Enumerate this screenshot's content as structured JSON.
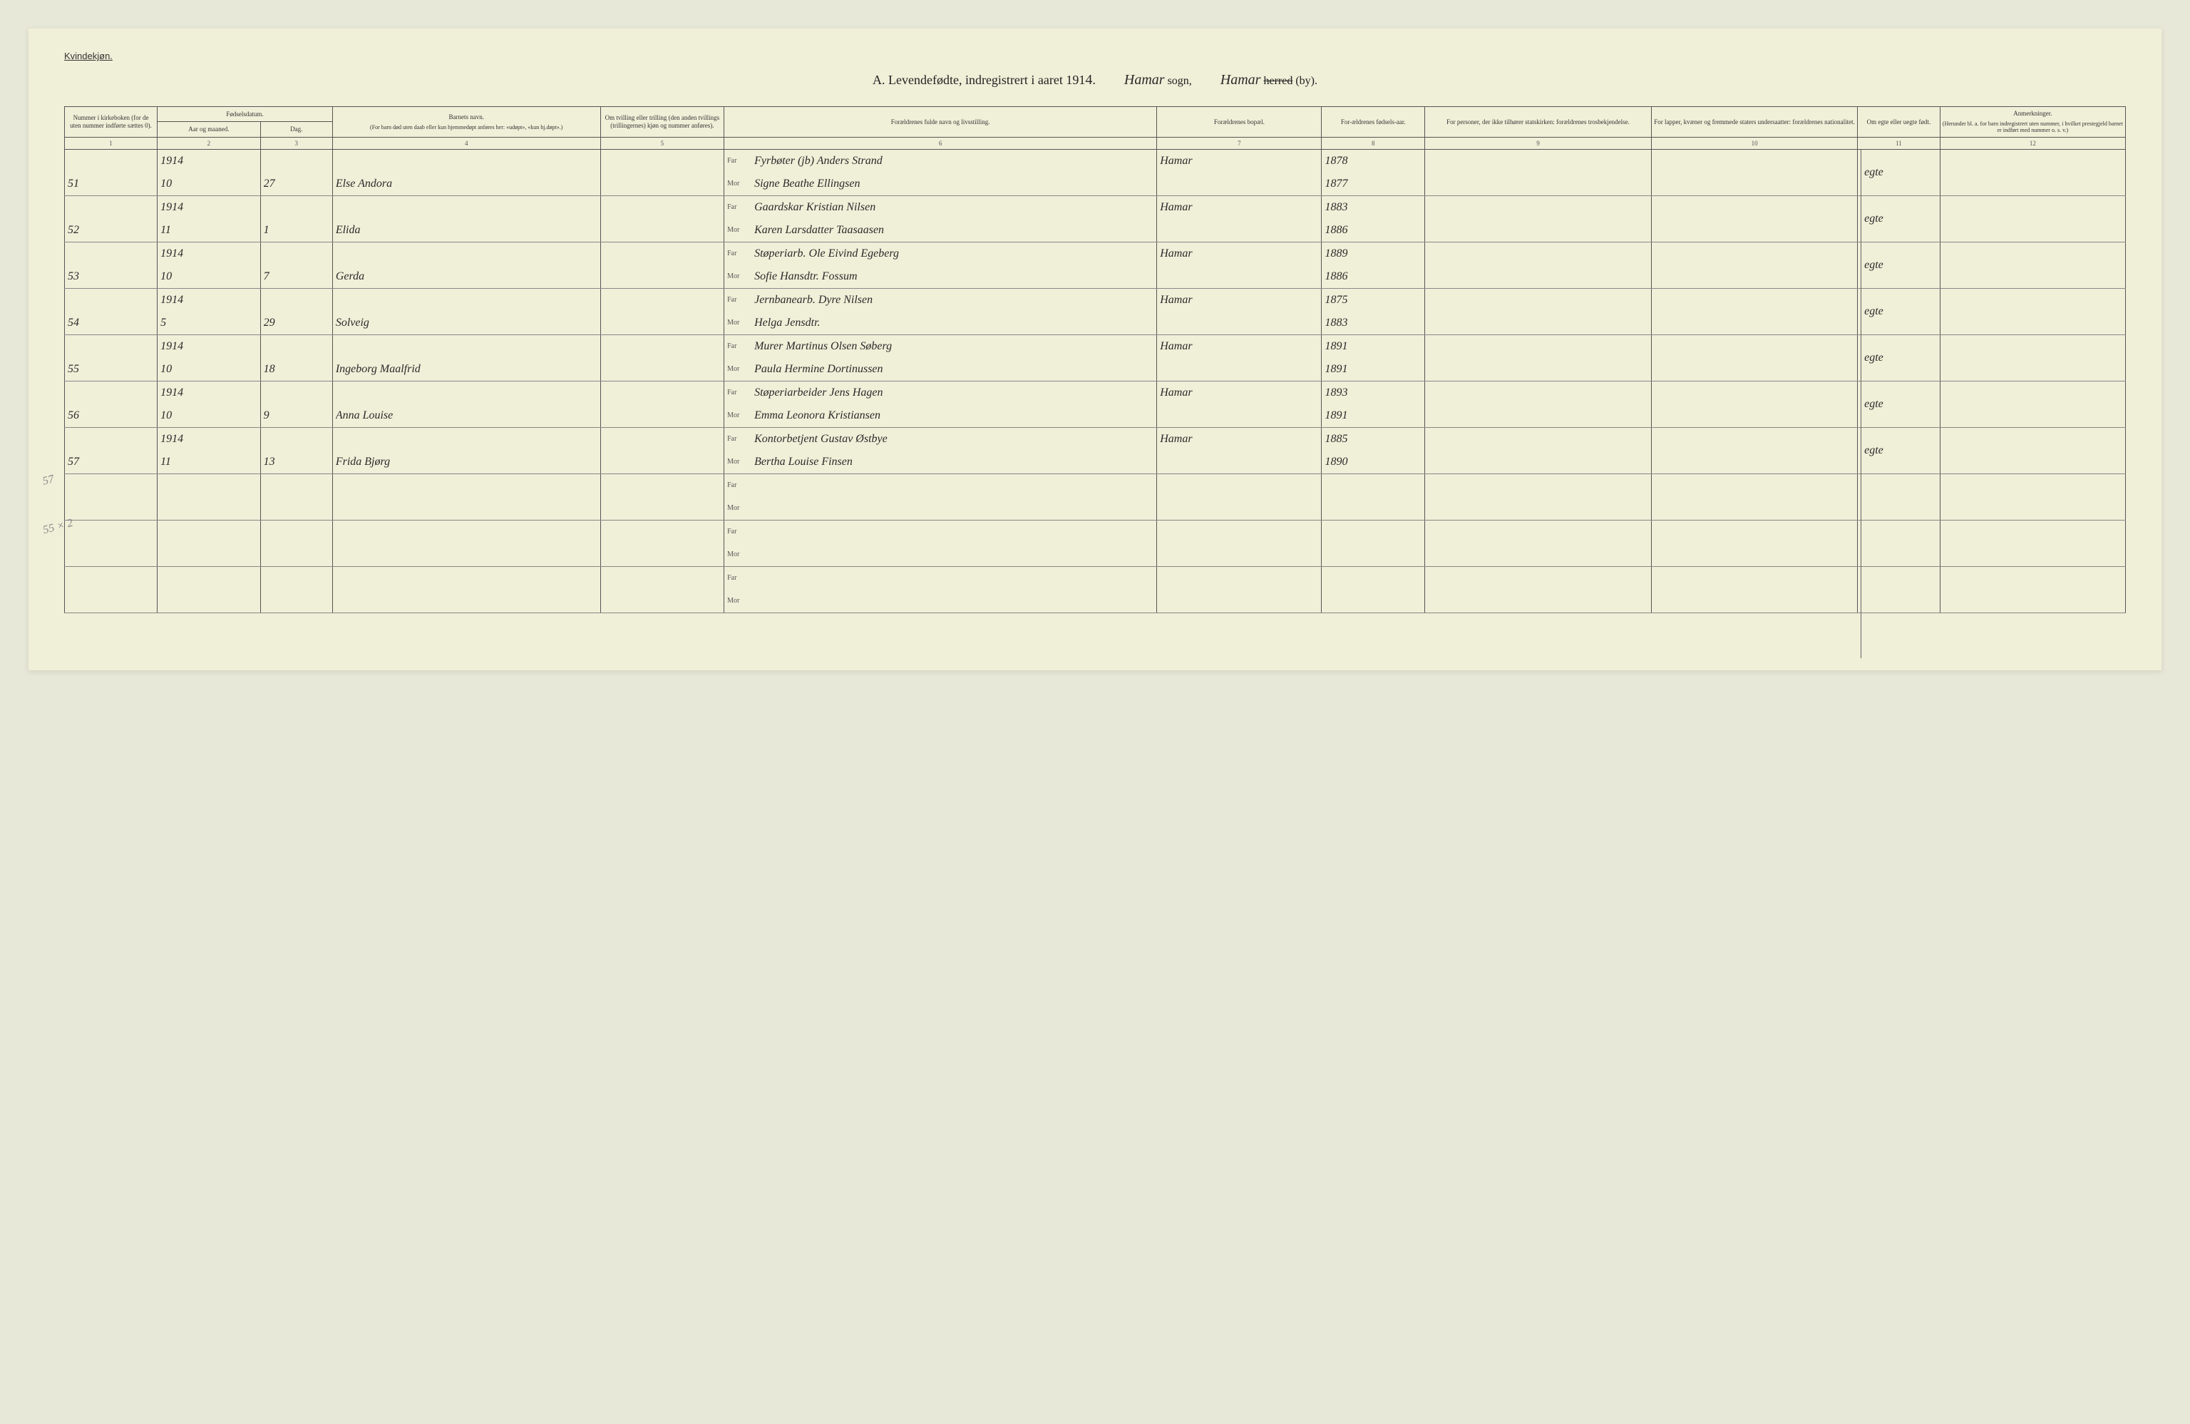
{
  "colors": {
    "page_bg": "#f0efd8",
    "outer_bg": "#e8e8d8",
    "border": "#555555",
    "handwriting": "#2a2a2a",
    "printed": "#333333"
  },
  "header": {
    "page_label": "Kvindekjøn.",
    "title_prefix": "A.  Levendefødte, indregistrert i aaret 191",
    "year_suffix_hand": "4",
    "title_period": ".",
    "sogn_hand": "Hamar",
    "sogn_label": "sogn,",
    "herred_hand": "Hamar",
    "herred_strike": "herred",
    "herred_by": "(by)."
  },
  "column_headers": {
    "c1": "Nummer i kirkeboken (for de uten nummer indførte sættes 0).",
    "c2_top": "Fødselsdatum.",
    "c2": "Aar og maaned.",
    "c3": "Dag.",
    "c4_top": "Barnets navn.",
    "c4_sub": "(For barn død uten daab eller kun hjemmedøpt anføres her: «udøpt», «kun hj.døpt».)",
    "c5": "Om tvilling eller trilling (den anden tvillings (trillingernes) kjøn og nummer anføres).",
    "c6": "Forældrenes fulde navn og livsstilling.",
    "c7": "Forældrenes bopæl.",
    "c8": "For-ældrenes fødsels-aar.",
    "c9": "For personer, der ikke tilhører statskirken: forældrenes trosbekjendelse.",
    "c10": "For lapper, kvæner og fremmede staters undersaatter: forældrenes nationalitet.",
    "c11": "Om egte eller uegte født.",
    "c12_top": "Anmerkninger.",
    "c12_sub": "(Herunder bl. a. for barn indregistrert uten nummer, i hvilket prestegjeld barnet er indført med nummer o. s. v.)"
  },
  "col_numbers": [
    "1",
    "2",
    "3",
    "4",
    "5",
    "6",
    "7",
    "8",
    "9",
    "10",
    "11",
    "12"
  ],
  "parent_labels": {
    "far": "Far",
    "mor": "Mor"
  },
  "rows": [
    {
      "num": "51",
      "year": "1914",
      "month": "10",
      "day": "27",
      "name": "Else Andora",
      "far": "Fyrbøter (jb) Anders Strand",
      "mor": "Signe Beathe Ellingsen",
      "bopael": "Hamar",
      "far_year": "1878",
      "mor_year": "1877",
      "egte": "egte"
    },
    {
      "num": "52",
      "year": "1914",
      "month": "11",
      "day": "1",
      "name": "Elida",
      "far": "Gaardskar Kristian Nilsen",
      "mor": "Karen Larsdatter Taasaasen",
      "bopael": "Hamar",
      "far_year": "1883",
      "mor_year": "1886",
      "egte": "egte"
    },
    {
      "num": "53",
      "year": "1914",
      "month": "10",
      "day": "7",
      "name": "Gerda",
      "far": "Støperiarb. Ole Eivind Egeberg",
      "mor": "Sofie Hansdtr. Fossum",
      "bopael": "Hamar",
      "far_year": "1889",
      "mor_year": "1886",
      "egte": "egte"
    },
    {
      "num": "54",
      "year": "1914",
      "month": "5",
      "day": "29",
      "name": "Solveig",
      "far": "Jernbanearb. Dyre Nilsen",
      "mor": "Helga Jensdtr.",
      "bopael": "Hamar",
      "far_year": "1875",
      "mor_year": "1883",
      "egte": "egte"
    },
    {
      "num": "55",
      "year": "1914",
      "month": "10",
      "day": "18",
      "name": "Ingeborg Maalfrid",
      "far": "Murer Martinus Olsen Søberg",
      "mor": "Paula Hermine Dortinussen",
      "bopael": "Hamar",
      "far_year": "1891",
      "mor_year": "1891",
      "egte": "egte"
    },
    {
      "num": "56",
      "year": "1914",
      "month": "10",
      "day": "9",
      "name": "Anna Louise",
      "far": "Støperiarbeider Jens Hagen",
      "mor": "Emma Leonora Kristiansen",
      "bopael": "Hamar",
      "far_year": "1893",
      "mor_year": "1891",
      "egte": "egte"
    },
    {
      "num": "57",
      "year": "1914",
      "month": "11",
      "day": "13",
      "name": "Frida Bjørg",
      "far": "Kontorbetjent Gustav Østbye",
      "mor": "Bertha Louise Finsen",
      "bopael": "Hamar",
      "far_year": "1885",
      "mor_year": "1890",
      "egte": "egte"
    },
    {
      "num": "",
      "margin_note": "57",
      "year": "",
      "month": "",
      "day": "",
      "name": "",
      "far": "",
      "mor": "",
      "bopael": "",
      "far_year": "",
      "mor_year": "",
      "egte": ""
    },
    {
      "num": "",
      "margin_note": "55 × 2",
      "year": "",
      "month": "",
      "day": "",
      "name": "",
      "far": "",
      "mor": "",
      "bopael": "",
      "far_year": "",
      "mor_year": "",
      "egte": ""
    },
    {
      "num": "",
      "year": "",
      "month": "",
      "day": "",
      "name": "",
      "far": "",
      "mor": "",
      "bopael": "",
      "far_year": "",
      "mor_year": "",
      "egte": ""
    }
  ]
}
